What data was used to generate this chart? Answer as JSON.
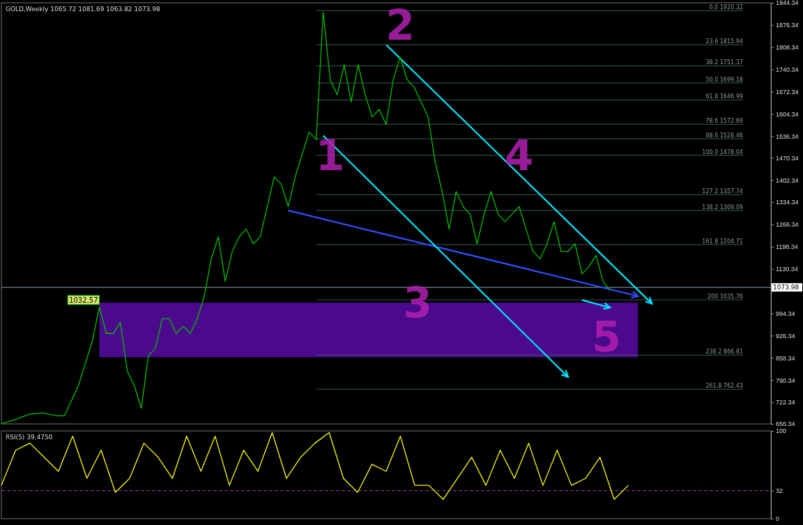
{
  "chart_data": [
    {
      "type": "line",
      "title": "GOLD,Weekly 1065.72 1081.69 1063.82 1073.98",
      "categories": [
        null,
        null,
        null,
        null,
        null,
        null,
        null,
        null,
        null,
        null,
        null,
        null,
        null,
        null,
        null,
        null,
        null,
        null,
        null,
        null,
        null,
        null,
        null,
        null,
        null,
        null,
        null,
        null,
        null,
        null,
        null,
        null,
        null,
        null,
        null,
        null,
        null,
        null,
        null,
        null,
        null,
        null,
        null,
        null,
        null,
        null,
        null,
        null,
        null,
        null,
        null,
        null,
        null,
        null,
        null,
        null,
        null,
        null,
        null,
        null,
        null,
        null,
        null,
        null,
        null,
        null,
        null,
        null,
        null,
        null,
        null,
        null,
        null,
        null,
        null,
        null,
        null,
        null,
        null,
        null,
        null,
        null,
        null,
        null,
        null,
        null,
        null,
        null,
        null,
        null,
        null,
        null,
        null,
        null,
        null,
        null,
        null,
        null,
        null,
        null,
        null,
        null,
        null,
        null,
        null,
        null,
        null,
        null,
        null,
        null,
        null
      ],
      "ylim": [
        656.34,
        1944.34
      ],
      "yticks": [
        656.34,
        722.34,
        790.34,
        858.34,
        926.34,
        994.34,
        {
          "value": 1062.34,
          "label": null
        },
        1130.34,
        1198.34,
        1266.34,
        1334.34,
        1402.34,
        1470.34,
        1536.34,
        1604.34,
        1672.34,
        1740.34,
        1808.34,
        1876.34,
        1944.34
      ],
      "tick_labels": "y",
      "series": [
        {
          "color": "#00c000",
          "values": [
            657,
            663,
            670,
            678,
            686,
            688,
            690,
            685,
            681,
            681,
            727,
            773,
            841,
            910,
            1013,
            933,
            933,
            967,
            818,
            773,
            704,
            864,
            887,
            978,
            978,
            933,
            955,
            933,
            978,
            1047,
            1161,
            1229,
            1092,
            1184,
            1229,
            1252,
            1207,
            1229,
            1321,
            1412,
            1389,
            1321,
            1412,
            1481,
            1549,
            1526,
            1915,
            1709,
            1663,
            1755,
            1641,
            1755,
            1663,
            1595,
            1618,
            1572,
            1709,
            1778,
            1709,
            1686,
            1641,
            1595,
            1458,
            1367,
            1252,
            1367,
            1321,
            1298,
            1207,
            1298,
            1367,
            1298,
            1275,
            1298,
            1321,
            1252,
            1184,
            1161,
            1207,
            1275,
            1184,
            1184,
            1207,
            1115,
            1138,
            1172,
            1092,
            1065,
            null,
            null,
            null,
            null,
            null,
            null,
            null,
            null,
            null,
            null,
            null,
            null,
            null,
            null,
            null,
            null,
            null,
            null,
            null,
            null,
            null,
            null,
            null
          ]
        },
        {
          "type": "line",
          "color": "#00e5ff",
          "values": [
            null,
            null,
            null,
            null,
            null,
            null,
            null,
            null,
            null,
            null,
            null,
            null,
            null,
            null,
            null,
            null,
            null,
            null,
            null,
            null,
            null,
            null,
            null,
            null,
            null,
            null,
            null,
            null,
            null,
            null,
            null,
            null,
            null,
            null,
            null,
            null,
            null,
            null,
            null,
            null,
            null,
            null,
            null,
            null,
            null,
            null,
            null,
            null,
            null,
            null,
            null,
            null,
            null,
            null,
            null,
            1816,
            null,
            null,
            null,
            null,
            null,
            null,
            null,
            null,
            null,
            null,
            null,
            null,
            null,
            null,
            null,
            null,
            null,
            null,
            null,
            null,
            null,
            null,
            null,
            null,
            null,
            null,
            null,
            null,
            null,
            null,
            null,
            null,
            null,
            null,
            null,
            null,
            null,
            1024,
            null,
            null,
            null,
            null,
            null,
            null,
            null,
            null,
            null,
            null,
            null,
            null,
            null,
            null,
            null,
            null,
            null
          ]
        },
        {
          "type": "line",
          "color": "#00e5ff",
          "values": [
            null,
            null,
            null,
            null,
            null,
            null,
            null,
            null,
            null,
            null,
            null,
            null,
            null,
            null,
            null,
            null,
            null,
            null,
            null,
            null,
            null,
            null,
            null,
            null,
            null,
            null,
            null,
            null,
            null,
            null,
            null,
            null,
            null,
            null,
            null,
            null,
            null,
            null,
            null,
            null,
            null,
            null,
            null,
            null,
            null,
            null,
            1538,
            null,
            null,
            null,
            null,
            null,
            null,
            null,
            null,
            null,
            null,
            null,
            null,
            null,
            null,
            null,
            null,
            null,
            null,
            null,
            null,
            null,
            null,
            null,
            null,
            null,
            null,
            null,
            null,
            null,
            null,
            null,
            null,
            null,
            null,
            800,
            null,
            null,
            null,
            null,
            null,
            null,
            null,
            null,
            null,
            null,
            null,
            null,
            null,
            null,
            null,
            null,
            null,
            null,
            null,
            null,
            null,
            null,
            null,
            null,
            null,
            null,
            null,
            null,
            null
          ]
        },
        {
          "type": "line",
          "color": "#3050ff",
          "values": [
            null,
            null,
            null,
            null,
            null,
            null,
            null,
            null,
            null,
            null,
            null,
            null,
            null,
            null,
            null,
            null,
            null,
            null,
            null,
            null,
            null,
            null,
            null,
            null,
            null,
            null,
            null,
            null,
            null,
            null,
            null,
            null,
            null,
            null,
            null,
            null,
            null,
            null,
            null,
            null,
            null,
            1309,
            null,
            null,
            null,
            null,
            null,
            null,
            null,
            null,
            null,
            null,
            null,
            null,
            null,
            null,
            null,
            null,
            null,
            null,
            null,
            null,
            null,
            null,
            null,
            null,
            null,
            null,
            null,
            null,
            null,
            null,
            null,
            null,
            null,
            null,
            null,
            null,
            null,
            null,
            null,
            null,
            null,
            null,
            null,
            null,
            null,
            null,
            null,
            null,
            null,
            1047,
            null,
            null,
            null,
            null,
            null,
            null,
            null,
            null,
            null,
            null,
            null,
            null,
            null,
            null,
            null,
            null,
            null,
            null,
            null
          ]
        },
        {
          "type": "line",
          "color": "#00e5ff",
          "values": [
            null,
            null,
            null,
            null,
            null,
            null,
            null,
            null,
            null,
            null,
            null,
            null,
            null,
            null,
            null,
            null,
            null,
            null,
            null,
            null,
            null,
            null,
            null,
            null,
            null,
            null,
            null,
            null,
            null,
            null,
            null,
            null,
            null,
            null,
            null,
            null,
            null,
            null,
            null,
            null,
            null,
            null,
            null,
            null,
            null,
            null,
            null,
            null,
            null,
            null,
            null,
            null,
            null,
            null,
            null,
            null,
            null,
            null,
            null,
            null,
            null,
            null,
            null,
            null,
            null,
            null,
            null,
            null,
            null,
            null,
            null,
            null,
            null,
            null,
            null,
            null,
            null,
            null,
            null,
            null,
            null,
            null,
            null,
            1035,
            null,
            null,
            null,
            1012,
            null,
            null,
            null,
            null,
            null,
            null,
            null,
            null,
            null,
            null,
            null,
            null,
            null,
            null,
            null,
            null,
            null,
            null,
            null,
            null,
            null,
            null,
            null
          ]
        }
      ],
      "bands": [
        {
          "axis": "y",
          "from": 860,
          "to": 1027,
          "color": "#4b0a8c"
        }
      ],
      "ref_lines": [
        {
          "axis": "y",
          "value": 1920.32,
          "label": "0.0  1920.32",
          "color": "#3c5a5a"
        },
        {
          "axis": "y",
          "value": 1815.94,
          "label": "23.6  1815.94",
          "color": "#3c5a5a"
        },
        {
          "axis": "y",
          "value": 1751.37,
          "label": "38.2  1751.37",
          "color": "#3c5a5a"
        },
        {
          "axis": "y",
          "value": 1699.18,
          "label": "50.0  1699.18",
          "color": "#3c5a5a"
        },
        {
          "axis": "y",
          "value": 1646.99,
          "label": "61.8  1646.99",
          "color": "#3c5a5a"
        },
        {
          "axis": "y",
          "value": 1572.69,
          "label": "78.6  1572.69",
          "color": "#3c5a5a"
        },
        {
          "axis": "y",
          "value": 1528.46,
          "label": "88.6  1528.46",
          "color": "#3c5a5a"
        },
        {
          "axis": "y",
          "value": 1478.04,
          "label": "100.0  1478.04",
          "color": "#3c5a5a"
        },
        {
          "axis": "y",
          "value": 1357.74,
          "label": "127.2  1357.74",
          "color": "#3c5a5a"
        },
        {
          "axis": "y",
          "value": 1309.09,
          "label": "138.2  1309.09",
          "color": "#3c5a5a"
        },
        {
          "axis": "y",
          "value": 1204.71,
          "label": "161.8  1204.71",
          "color": "#3c5a5a"
        },
        {
          "axis": "y",
          "value": 1035.76,
          "label": "200  1035.76",
          "color": "#3c5a5a"
        },
        {
          "axis": "y",
          "value": 866.81,
          "label": "238.2  866.81",
          "color": "#3c5a5a"
        },
        {
          "axis": "y",
          "value": 762.43,
          "label": "261.8  762.43",
          "color": "#3c5a5a"
        },
        {
          "axis": "y",
          "value": 1073.98,
          "label": "1073.98",
          "color": "#8fa8b8"
        }
      ],
      "annotations": [
        "1032.57",
        "1",
        "2",
        "3",
        "4",
        "5"
      ]
    },
    {
      "type": "line",
      "title": "RSI(5) 39.4750",
      "categories": [
        null,
        null,
        null,
        null,
        null,
        null,
        null,
        null,
        null,
        null,
        null,
        null,
        null,
        null,
        null,
        null,
        null,
        null,
        null,
        null,
        null,
        null,
        null,
        null,
        null,
        null,
        null,
        null,
        null,
        null,
        null,
        null,
        null,
        null,
        null,
        null,
        null,
        null,
        null,
        null,
        null,
        null,
        null,
        null,
        null,
        null,
        null,
        null,
        null,
        null,
        null,
        null,
        null,
        null,
        null
      ],
      "ylim": [
        0,
        100
      ],
      "yticks": [
        0,
        32,
        100
      ],
      "tick_labels": "y",
      "series": [
        {
          "color": "#ffff00",
          "values": [
            38,
            78,
            86,
            70,
            54,
            94,
            46,
            78,
            30,
            46,
            86,
            70,
            46,
            94,
            54,
            94,
            38,
            78,
            54,
            98,
            46,
            70,
            86,
            98,
            46,
            30,
            62,
            54,
            94,
            38,
            38,
            22,
            46,
            70,
            38,
            78,
            46,
            86,
            38,
            78,
            38,
            46,
            70,
            22,
            38,
            null,
            null,
            null,
            null,
            null,
            null,
            null,
            null,
            null,
            null
          ]
        }
      ],
      "ref_lines": [
        {
          "axis": "y",
          "value": 32,
          "color": "#a040a0",
          "line_style": "dashed"
        }
      ]
    }
  ]
}
